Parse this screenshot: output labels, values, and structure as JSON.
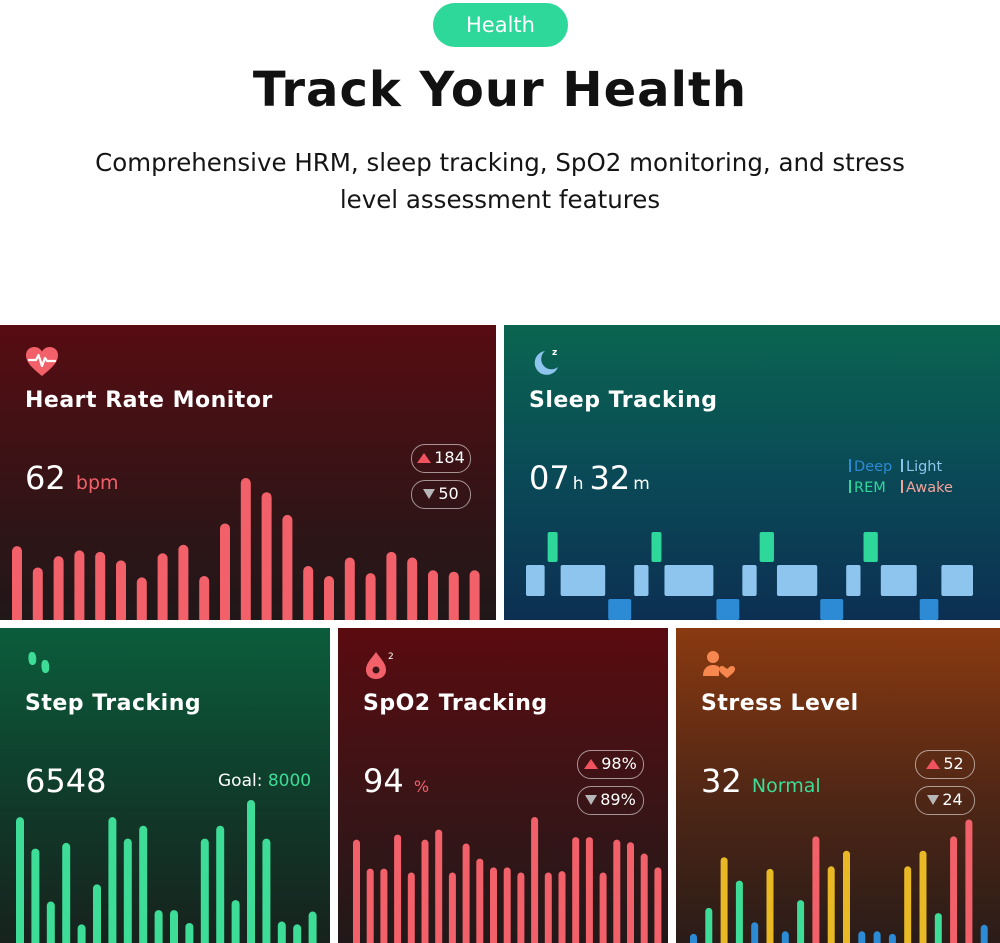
{
  "header": {
    "pill": "Health",
    "title": "Track Your Health",
    "subtitle": "Comprehensive HRM, sleep tracking, SpO2 monitoring, and stress level assessment features",
    "pill_color": "#2ed79a"
  },
  "heart_rate": {
    "icon": "heart-pulse-icon",
    "title": "Heart Rate Monitor",
    "value": "62",
    "unit": "bpm",
    "max": "184",
    "min": "50",
    "accent": "#f2616a",
    "bars": [
      52,
      37,
      45,
      49,
      48,
      42,
      30,
      47,
      53,
      31,
      68,
      100,
      90,
      74,
      38,
      31,
      44,
      33,
      48,
      44,
      35,
      34,
      35
    ]
  },
  "sleep": {
    "icon": "moon-sleep-icon",
    "title": "Sleep Tracking",
    "hours": "07",
    "hours_unit": "h",
    "minutes": "32",
    "minutes_unit": "m",
    "legend": [
      {
        "label": "Deep",
        "color": "#2d8ad4"
      },
      {
        "label": "Light",
        "color": "#8ec5ee"
      },
      {
        "label": "REM",
        "color": "#2ed79a"
      },
      {
        "label": "Awake",
        "color": "#f4a39a"
      }
    ],
    "stages": [
      {
        "stage": "Light",
        "from": 0,
        "to": 5
      },
      {
        "stage": "REM",
        "from": 5,
        "to": 8
      },
      {
        "stage": "Light",
        "from": 8,
        "to": 19
      },
      {
        "stage": "Deep",
        "from": 19,
        "to": 25
      },
      {
        "stage": "Light",
        "from": 25,
        "to": 29
      },
      {
        "stage": "REM",
        "from": 29,
        "to": 32
      },
      {
        "stage": "Light",
        "from": 32,
        "to": 44
      },
      {
        "stage": "Deep",
        "from": 44,
        "to": 50
      },
      {
        "stage": "Light",
        "from": 50,
        "to": 54
      },
      {
        "stage": "REM",
        "from": 54,
        "to": 58
      },
      {
        "stage": "Light",
        "from": 58,
        "to": 68
      },
      {
        "stage": "Deep",
        "from": 68,
        "to": 74
      },
      {
        "stage": "Light",
        "from": 74,
        "to": 78
      },
      {
        "stage": "REM",
        "from": 78,
        "to": 82
      },
      {
        "stage": "Light",
        "from": 82,
        "to": 91
      },
      {
        "stage": "Deep",
        "from": 91,
        "to": 96
      },
      {
        "stage": "Light",
        "from": 96,
        "to": 104
      }
    ]
  },
  "steps": {
    "icon": "footprints-icon",
    "title": "Step Tracking",
    "value": "6548",
    "goal_label": "Goal:",
    "goal_value": "8000",
    "accent": "#3ddc97",
    "bars": [
      88,
      66,
      29,
      70,
      13,
      41,
      88,
      73,
      82,
      23,
      23,
      14,
      73,
      82,
      30,
      100,
      73,
      15,
      13,
      22
    ]
  },
  "spo2": {
    "icon": "blood-drop-o2-icon",
    "title": "SpO2 Tracking",
    "value": "94",
    "unit": "%",
    "max": "98%",
    "min": "89%",
    "accent": "#f2616a",
    "bars": [
      82,
      59,
      59,
      86,
      56,
      82,
      90,
      56,
      79,
      67,
      60,
      60,
      56,
      100,
      56,
      57,
      84,
      84,
      56,
      82,
      80,
      71,
      60
    ]
  },
  "stress": {
    "icon": "person-heart-icon",
    "title": "Stress Level",
    "value": "32",
    "status": "Normal",
    "max": "52",
    "min": "24",
    "status_color": "#3ddc97",
    "bars": [
      {
        "v": 7,
        "c": "#2d8ad4"
      },
      {
        "v": 27,
        "c": "#3ddc97"
      },
      {
        "v": 66,
        "c": "#e8b825"
      },
      {
        "v": 48,
        "c": "#3ddc97"
      },
      {
        "v": 16,
        "c": "#2d8ad4"
      },
      {
        "v": 57,
        "c": "#e8b825"
      },
      {
        "v": 9,
        "c": "#2d8ad4"
      },
      {
        "v": 33,
        "c": "#3ddc97"
      },
      {
        "v": 82,
        "c": "#f2616a"
      },
      {
        "v": 59,
        "c": "#e8b825"
      },
      {
        "v": 71,
        "c": "#e8b825"
      },
      {
        "v": 9,
        "c": "#2d8ad4"
      },
      {
        "v": 9,
        "c": "#2d8ad4"
      },
      {
        "v": 7,
        "c": "#2d8ad4"
      },
      {
        "v": 59,
        "c": "#e8b825"
      },
      {
        "v": 71,
        "c": "#e8b825"
      },
      {
        "v": 23,
        "c": "#3ddc97"
      },
      {
        "v": 82,
        "c": "#f2616a"
      },
      {
        "v": 95,
        "c": "#f2616a"
      },
      {
        "v": 14,
        "c": "#2d8ad4"
      }
    ]
  }
}
